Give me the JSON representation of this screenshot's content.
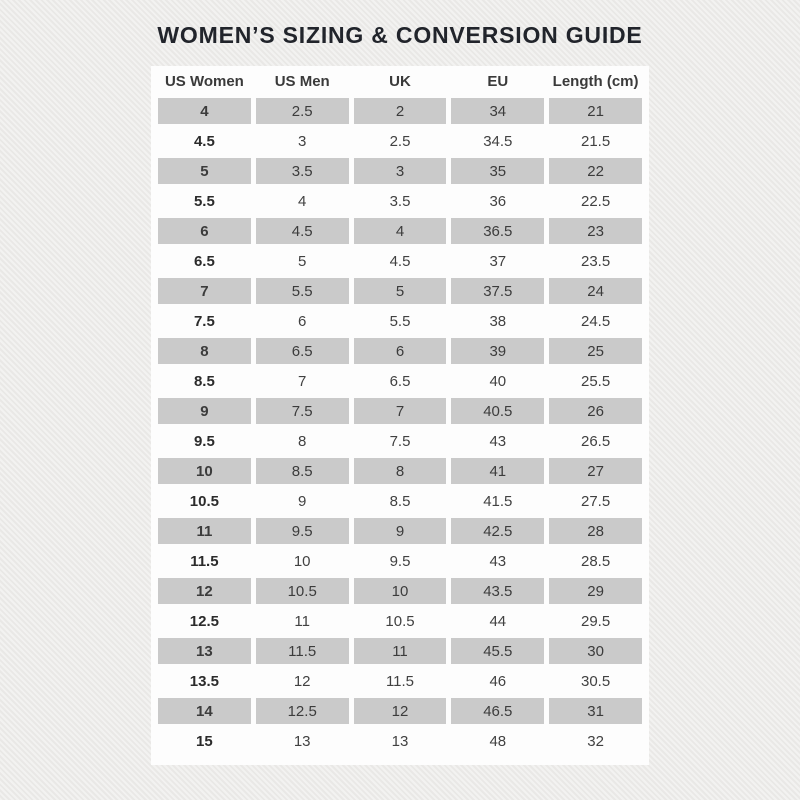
{
  "page": {
    "title": "WOMEN’S SIZING & CONVERSION GUIDE"
  },
  "colors": {
    "page_background": "#ecebe9",
    "panel_background": "#fdfdfd",
    "shaded_cell": "#cacaca",
    "title_text": "#21242b",
    "header_text": "#3a3a3a",
    "cell_text": "#414141"
  },
  "chart_data": {
    "type": "table",
    "title": "WOMEN’S SIZING & CONVERSION GUIDE",
    "columns": [
      "US Women",
      "US Men",
      "UK",
      "EU",
      "Length (cm)"
    ],
    "rows": [
      [
        "4",
        "2.5",
        "2",
        "34",
        "21"
      ],
      [
        "4.5",
        "3",
        "2.5",
        "34.5",
        "21.5"
      ],
      [
        "5",
        "3.5",
        "3",
        "35",
        "22"
      ],
      [
        "5.5",
        "4",
        "3.5",
        "36",
        "22.5"
      ],
      [
        "6",
        "4.5",
        "4",
        "36.5",
        "23"
      ],
      [
        "6.5",
        "5",
        "4.5",
        "37",
        "23.5"
      ],
      [
        "7",
        "5.5",
        "5",
        "37.5",
        "24"
      ],
      [
        "7.5",
        "6",
        "5.5",
        "38",
        "24.5"
      ],
      [
        "8",
        "6.5",
        "6",
        "39",
        "25"
      ],
      [
        "8.5",
        "7",
        "6.5",
        "40",
        "25.5"
      ],
      [
        "9",
        "7.5",
        "7",
        "40.5",
        "26"
      ],
      [
        "9.5",
        "8",
        "7.5",
        "43",
        "26.5"
      ],
      [
        "10",
        "8.5",
        "8",
        "41",
        "27"
      ],
      [
        "10.5",
        "9",
        "8.5",
        "41.5",
        "27.5"
      ],
      [
        "11",
        "9.5",
        "9",
        "42.5",
        "28"
      ],
      [
        "11.5",
        "10",
        "9.5",
        "43",
        "28.5"
      ],
      [
        "12",
        "10.5",
        "10",
        "43.5",
        "29"
      ],
      [
        "12.5",
        "11",
        "10.5",
        "44",
        "29.5"
      ],
      [
        "13",
        "11.5",
        "11",
        "45.5",
        "30"
      ],
      [
        "13.5",
        "12",
        "11.5",
        "46",
        "30.5"
      ],
      [
        "14",
        "12.5",
        "12",
        "46.5",
        "31"
      ],
      [
        "15",
        "13",
        "13",
        "48",
        "32"
      ]
    ],
    "layout": {
      "shading": "alternating rows, first row shaded",
      "grid": "off",
      "legend": "none"
    }
  }
}
